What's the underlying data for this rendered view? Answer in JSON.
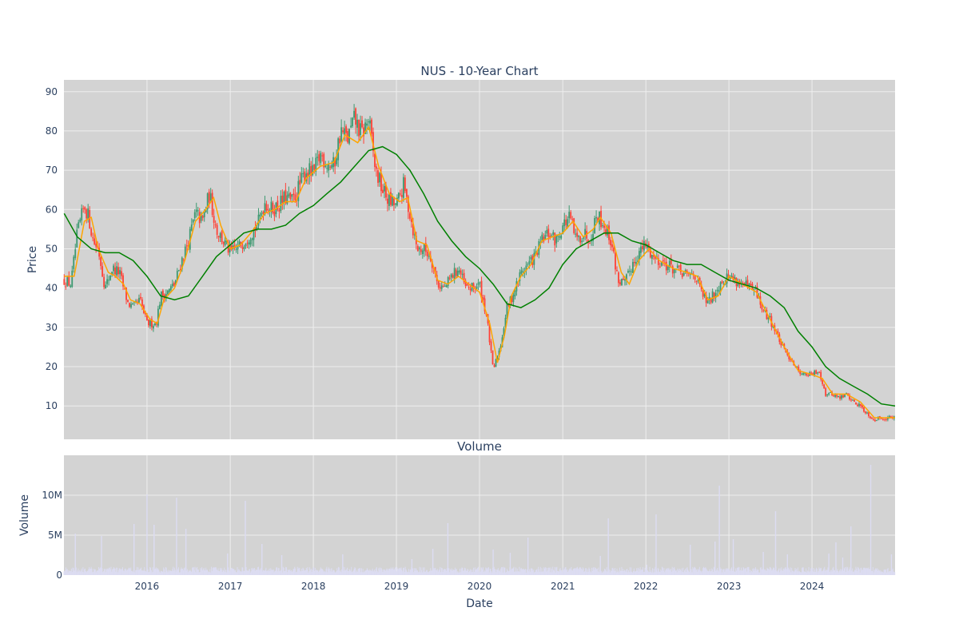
{
  "chart_data": [
    {
      "type": "candlestick",
      "title": "NUS - 10-Year Chart",
      "ylabel": "Price",
      "xlabel": "",
      "x_range": [
        "2015-01-01",
        "2024-12-31"
      ],
      "ylim": [
        1.5,
        93
      ],
      "y_ticks": [
        10,
        20,
        30,
        40,
        50,
        60,
        70,
        80,
        90
      ],
      "x_ticks": [
        "2016",
        "2017",
        "2018",
        "2019",
        "2020",
        "2021",
        "2022",
        "2023",
        "2024"
      ],
      "grid": true,
      "colors": {
        "plot_bg": "#d3d3d3",
        "grid": "#eeeeee",
        "increasing": "#3d9970",
        "decreasing": "#ff4136",
        "ma_short": "#ffa500",
        "ma_long": "#008000"
      },
      "close_path": [
        [
          "2015-01-02",
          42
        ],
        [
          "2015-02-01",
          41
        ],
        [
          "2015-03-01",
          54
        ],
        [
          "2015-04-01",
          61
        ],
        [
          "2015-04-20",
          58
        ],
        [
          "2015-05-10",
          52
        ],
        [
          "2015-06-01",
          50
        ],
        [
          "2015-07-01",
          40
        ],
        [
          "2015-08-01",
          45
        ],
        [
          "2015-09-01",
          44
        ],
        [
          "2015-09-20",
          40
        ],
        [
          "2015-10-10",
          36
        ],
        [
          "2015-11-01",
          35
        ],
        [
          "2015-12-01",
          37
        ],
        [
          "2016-01-01",
          31
        ],
        [
          "2016-02-10",
          31
        ],
        [
          "2016-03-01",
          38
        ],
        [
          "2016-04-01",
          39
        ],
        [
          "2016-05-01",
          41
        ],
        [
          "2016-06-01",
          47
        ],
        [
          "2016-07-01",
          52
        ],
        [
          "2016-08-01",
          59
        ],
        [
          "2016-09-01",
          57
        ],
        [
          "2016-10-01",
          64
        ],
        [
          "2016-11-01",
          55
        ],
        [
          "2016-12-01",
          52
        ],
        [
          "2017-01-01",
          49
        ],
        [
          "2017-02-01",
          50
        ],
        [
          "2017-03-01",
          52
        ],
        [
          "2017-04-01",
          54
        ],
        [
          "2017-05-01",
          56
        ],
        [
          "2017-06-01",
          62
        ],
        [
          "2017-07-01",
          60
        ],
        [
          "2017-08-01",
          61
        ],
        [
          "2017-09-01",
          63
        ],
        [
          "2017-10-01",
          62
        ],
        [
          "2017-11-01",
          66
        ],
        [
          "2017-12-01",
          70
        ],
        [
          "2018-01-01",
          69
        ],
        [
          "2018-02-01",
          74
        ],
        [
          "2018-03-01",
          72
        ],
        [
          "2018-04-01",
          71
        ],
        [
          "2018-05-01",
          80
        ],
        [
          "2018-06-01",
          78
        ],
        [
          "2018-07-01",
          83
        ],
        [
          "2018-08-01",
          79
        ],
        [
          "2018-09-01",
          83
        ],
        [
          "2018-10-01",
          70
        ],
        [
          "2018-11-01",
          65
        ],
        [
          "2018-12-01",
          62
        ],
        [
          "2019-01-01",
          61
        ],
        [
          "2019-02-01",
          66
        ],
        [
          "2019-03-01",
          59
        ],
        [
          "2019-04-01",
          50
        ],
        [
          "2019-05-01",
          50
        ],
        [
          "2019-06-01",
          48
        ],
        [
          "2019-07-01",
          41
        ],
        [
          "2019-08-01",
          40
        ],
        [
          "2019-09-01",
          43
        ],
        [
          "2019-10-01",
          45
        ],
        [
          "2019-11-01",
          40
        ],
        [
          "2019-12-01",
          40
        ],
        [
          "2020-01-01",
          41
        ],
        [
          "2020-02-01",
          33
        ],
        [
          "2020-03-01",
          19
        ],
        [
          "2020-04-01",
          25
        ],
        [
          "2020-05-01",
          35
        ],
        [
          "2020-06-01",
          39
        ],
        [
          "2020-07-01",
          44
        ],
        [
          "2020-08-01",
          46
        ],
        [
          "2020-09-01",
          48
        ],
        [
          "2020-10-01",
          52
        ],
        [
          "2020-11-01",
          54
        ],
        [
          "2020-12-01",
          52
        ],
        [
          "2021-01-01",
          56
        ],
        [
          "2021-02-01",
          58
        ],
        [
          "2021-03-01",
          52
        ],
        [
          "2021-04-01",
          54
        ],
        [
          "2021-05-01",
          53
        ],
        [
          "2021-06-01",
          59
        ],
        [
          "2021-07-01",
          56
        ],
        [
          "2021-08-01",
          52
        ],
        [
          "2021-09-01",
          42
        ],
        [
          "2021-10-01",
          41
        ],
        [
          "2021-11-01",
          46
        ],
        [
          "2021-12-01",
          49
        ],
        [
          "2022-01-01",
          51
        ],
        [
          "2022-02-01",
          48
        ],
        [
          "2022-03-01",
          47
        ],
        [
          "2022-04-01",
          46
        ],
        [
          "2022-05-01",
          45
        ],
        [
          "2022-06-01",
          44
        ],
        [
          "2022-07-01",
          43
        ],
        [
          "2022-08-01",
          44
        ],
        [
          "2022-09-01",
          39
        ],
        [
          "2022-10-01",
          36
        ],
        [
          "2022-11-01",
          39
        ],
        [
          "2022-12-01",
          42
        ],
        [
          "2023-01-01",
          43
        ],
        [
          "2023-02-01",
          42
        ],
        [
          "2023-03-01",
          41
        ],
        [
          "2023-04-01",
          40
        ],
        [
          "2023-05-01",
          39
        ],
        [
          "2023-06-01",
          34
        ],
        [
          "2023-07-01",
          32
        ],
        [
          "2023-08-01",
          28
        ],
        [
          "2023-09-01",
          24
        ],
        [
          "2023-10-01",
          22
        ],
        [
          "2023-11-01",
          19
        ],
        [
          "2023-12-01",
          18
        ],
        [
          "2024-01-01",
          18
        ],
        [
          "2024-02-01",
          19
        ],
        [
          "2024-03-01",
          13
        ],
        [
          "2024-04-01",
          13
        ],
        [
          "2024-05-01",
          12
        ],
        [
          "2024-06-01",
          13
        ],
        [
          "2024-07-01",
          11
        ],
        [
          "2024-08-01",
          10
        ],
        [
          "2024-09-01",
          8
        ],
        [
          "2024-10-01",
          6.5
        ],
        [
          "2024-11-01",
          7
        ],
        [
          "2024-12-31",
          7
        ]
      ],
      "ma_short": [
        [
          "2015-01-02",
          43
        ],
        [
          "2015-02-15",
          43
        ],
        [
          "2015-04-01",
          57
        ],
        [
          "2015-05-01",
          58
        ],
        [
          "2015-06-01",
          50
        ],
        [
          "2015-07-15",
          44
        ],
        [
          "2015-08-15",
          43
        ],
        [
          "2015-09-20",
          41
        ],
        [
          "2015-10-20",
          37
        ],
        [
          "2015-12-01",
          36
        ],
        [
          "2016-01-15",
          32
        ],
        [
          "2016-02-15",
          31
        ],
        [
          "2016-03-15",
          37
        ],
        [
          "2016-05-01",
          40
        ],
        [
          "2016-06-15",
          47
        ],
        [
          "2016-08-01",
          57
        ],
        [
          "2016-09-15",
          60
        ],
        [
          "2016-10-20",
          63
        ],
        [
          "2016-11-20",
          56
        ],
        [
          "2017-01-01",
          50
        ],
        [
          "2017-02-15",
          51
        ],
        [
          "2017-04-01",
          54
        ],
        [
          "2017-06-01",
          59
        ],
        [
          "2017-07-15",
          60
        ],
        [
          "2017-09-01",
          62
        ],
        [
          "2017-10-15",
          62
        ],
        [
          "2017-12-01",
          68
        ],
        [
          "2018-02-01",
          71
        ],
        [
          "2018-04-01",
          72
        ],
        [
          "2018-05-20",
          79
        ],
        [
          "2018-07-15",
          77
        ],
        [
          "2018-09-01",
          81
        ],
        [
          "2018-10-15",
          71
        ],
        [
          "2018-12-01",
          64
        ],
        [
          "2019-01-15",
          62
        ],
        [
          "2019-02-20",
          63
        ],
        [
          "2019-04-01",
          52
        ],
        [
          "2019-05-15",
          51
        ],
        [
          "2019-07-01",
          42
        ],
        [
          "2019-08-15",
          41
        ],
        [
          "2019-10-01",
          43
        ],
        [
          "2019-11-15",
          41
        ],
        [
          "2020-01-01",
          39
        ],
        [
          "2020-02-15",
          31
        ],
        [
          "2020-03-20",
          21
        ],
        [
          "2020-04-20",
          28
        ],
        [
          "2020-05-20",
          38
        ],
        [
          "2020-07-01",
          43
        ],
        [
          "2020-08-15",
          46
        ],
        [
          "2020-10-01",
          52
        ],
        [
          "2020-11-15",
          53
        ],
        [
          "2021-01-01",
          54
        ],
        [
          "2021-02-15",
          57
        ],
        [
          "2021-04-01",
          53
        ],
        [
          "2021-05-15",
          55
        ],
        [
          "2021-06-15",
          58
        ],
        [
          "2021-08-01",
          54
        ],
        [
          "2021-09-15",
          44
        ],
        [
          "2021-10-20",
          41
        ],
        [
          "2021-12-01",
          47
        ],
        [
          "2022-01-15",
          50
        ],
        [
          "2022-03-01",
          47
        ],
        [
          "2022-05-01",
          45
        ],
        [
          "2022-07-01",
          44
        ],
        [
          "2022-08-15",
          43
        ],
        [
          "2022-10-01",
          37
        ],
        [
          "2022-11-15",
          38
        ],
        [
          "2023-01-01",
          43
        ],
        [
          "2023-03-01",
          41
        ],
        [
          "2023-05-01",
          39
        ],
        [
          "2023-07-01",
          32
        ],
        [
          "2023-09-01",
          25
        ],
        [
          "2023-11-01",
          19
        ],
        [
          "2024-01-01",
          18
        ],
        [
          "2024-02-15",
          17
        ],
        [
          "2024-04-01",
          13
        ],
        [
          "2024-06-01",
          13
        ],
        [
          "2024-08-01",
          11
        ],
        [
          "2024-10-01",
          7
        ],
        [
          "2024-12-31",
          7
        ]
      ],
      "ma_long": [
        [
          "2015-01-02",
          59
        ],
        [
          "2015-03-01",
          53
        ],
        [
          "2015-05-01",
          50
        ],
        [
          "2015-07-01",
          49
        ],
        [
          "2015-09-01",
          49
        ],
        [
          "2015-11-01",
          47
        ],
        [
          "2016-01-01",
          43
        ],
        [
          "2016-03-01",
          38
        ],
        [
          "2016-05-01",
          37
        ],
        [
          "2016-07-01",
          38
        ],
        [
          "2016-09-01",
          43
        ],
        [
          "2016-11-01",
          48
        ],
        [
          "2017-01-01",
          51
        ],
        [
          "2017-03-01",
          54
        ],
        [
          "2017-05-01",
          55
        ],
        [
          "2017-07-01",
          55
        ],
        [
          "2017-09-01",
          56
        ],
        [
          "2017-11-01",
          59
        ],
        [
          "2018-01-01",
          61
        ],
        [
          "2018-03-01",
          64
        ],
        [
          "2018-05-01",
          67
        ],
        [
          "2018-07-01",
          71
        ],
        [
          "2018-09-01",
          75
        ],
        [
          "2018-11-01",
          76
        ],
        [
          "2019-01-01",
          74
        ],
        [
          "2019-03-01",
          70
        ],
        [
          "2019-05-01",
          64
        ],
        [
          "2019-07-01",
          57
        ],
        [
          "2019-09-01",
          52
        ],
        [
          "2019-11-01",
          48
        ],
        [
          "2020-01-01",
          45
        ],
        [
          "2020-03-01",
          41
        ],
        [
          "2020-05-01",
          36
        ],
        [
          "2020-07-01",
          35
        ],
        [
          "2020-09-01",
          37
        ],
        [
          "2020-11-01",
          40
        ],
        [
          "2021-01-01",
          46
        ],
        [
          "2021-03-01",
          50
        ],
        [
          "2021-05-01",
          52
        ],
        [
          "2021-07-01",
          54
        ],
        [
          "2021-09-01",
          54
        ],
        [
          "2021-11-01",
          52
        ],
        [
          "2022-01-01",
          51
        ],
        [
          "2022-03-01",
          49
        ],
        [
          "2022-05-01",
          47
        ],
        [
          "2022-07-01",
          46
        ],
        [
          "2022-09-01",
          46
        ],
        [
          "2022-11-01",
          44
        ],
        [
          "2023-01-01",
          42
        ],
        [
          "2023-03-01",
          41
        ],
        [
          "2023-05-01",
          40
        ],
        [
          "2023-07-01",
          38
        ],
        [
          "2023-09-01",
          35
        ],
        [
          "2023-11-01",
          29
        ],
        [
          "2024-01-01",
          25
        ],
        [
          "2024-03-01",
          20
        ],
        [
          "2024-05-01",
          17
        ],
        [
          "2024-07-01",
          15
        ],
        [
          "2024-09-01",
          13
        ],
        [
          "2024-11-01",
          10.5
        ],
        [
          "2024-12-31",
          10
        ]
      ]
    },
    {
      "type": "bar",
      "title": "Volume",
      "xlabel": "Date",
      "ylabel": "Volume",
      "ylim": [
        0,
        15
      ],
      "y_ticks": [
        0,
        5,
        10
      ],
      "y_tick_labels": [
        "0",
        "5M",
        "10M"
      ],
      "unit": "millions",
      "x_ticks": [
        "2016",
        "2017",
        "2018",
        "2019",
        "2020",
        "2021",
        "2022",
        "2023",
        "2024"
      ],
      "grid": true,
      "colors": {
        "plot_bg": "#d3d3d3",
        "bar": "#dcdcf2"
      },
      "baseline": 0.8,
      "spikes": [
        [
          "2015-02-20",
          5.2
        ],
        [
          "2015-06-15",
          4.9
        ],
        [
          "2015-11-05",
          6.4
        ],
        [
          "2016-01-01",
          10.1
        ],
        [
          "2016-02-01",
          6.3
        ],
        [
          "2016-05-10",
          9.7
        ],
        [
          "2016-06-20",
          5.8
        ],
        [
          "2016-12-20",
          2.7
        ],
        [
          "2017-03-08",
          9.3
        ],
        [
          "2017-05-20",
          3.9
        ],
        [
          "2017-08-15",
          2.5
        ],
        [
          "2018-05-10",
          2.6
        ],
        [
          "2019-03-10",
          2.0
        ],
        [
          "2019-06-10",
          3.3
        ],
        [
          "2019-08-15",
          6.5
        ],
        [
          "2020-03-01",
          3.2
        ],
        [
          "2020-05-15",
          2.8
        ],
        [
          "2020-08-01",
          4.7
        ],
        [
          "2021-06-15",
          2.4
        ],
        [
          "2021-07-20",
          7.1
        ],
        [
          "2022-01-05",
          1.3
        ],
        [
          "2022-02-15",
          7.6
        ],
        [
          "2022-07-15",
          3.8
        ],
        [
          "2022-11-01",
          4.2
        ],
        [
          "2022-11-20",
          11.2
        ],
        [
          "2023-01-20",
          4.5
        ],
        [
          "2023-06-01",
          2.9
        ],
        [
          "2023-07-25",
          8.0
        ],
        [
          "2023-09-15",
          2.6
        ],
        [
          "2024-03-15",
          2.7
        ],
        [
          "2024-04-15",
          4.1
        ],
        [
          "2024-05-15",
          2.2
        ],
        [
          "2024-06-20",
          6.1
        ],
        [
          "2024-09-15",
          13.8
        ],
        [
          "2024-12-15",
          2.6
        ]
      ]
    }
  ]
}
